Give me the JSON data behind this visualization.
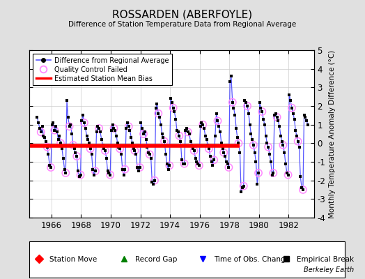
{
  "title": "ROSSARDEN (ABERFOYLE)",
  "subtitle": "Difference of Station Temperature Data from Regional Average",
  "ylabel": "Monthly Temperature Anomaly Difference (°C)",
  "xlim": [
    1964.5,
    1983.7
  ],
  "ylim": [
    -4,
    5
  ],
  "yticks": [
    -4,
    -3,
    -2,
    -1,
    0,
    1,
    2,
    3,
    4,
    5
  ],
  "xticks": [
    1966,
    1968,
    1970,
    1972,
    1974,
    1976,
    1978,
    1980,
    1982
  ],
  "bias_value": -0.15,
  "bias_start": 1964.5,
  "bias_end": 1978.7,
  "line_color": "#5555ff",
  "dot_color": "#000000",
  "qc_color": "#ff88ff",
  "bias_color": "#ff0000",
  "bg_color": "#e0e0e0",
  "plot_bg": "#ffffff",
  "grid_color": "#cccccc",
  "watermark": "Berkeley Earth",
  "legend1_items": [
    "Difference from Regional Average",
    "Quality Control Failed",
    "Estimated Station Mean Bias"
  ],
  "legend2_items": [
    "Station Move",
    "Record Gap",
    "Time of Obs. Change",
    "Empirical Break"
  ],
  "data_x": [
    1965.04,
    1965.12,
    1965.21,
    1965.29,
    1965.38,
    1965.46,
    1965.54,
    1965.62,
    1965.71,
    1965.79,
    1965.88,
    1965.96,
    1966.04,
    1966.12,
    1966.21,
    1966.29,
    1966.38,
    1966.46,
    1966.54,
    1966.62,
    1966.71,
    1966.79,
    1966.88,
    1966.96,
    1967.04,
    1967.12,
    1967.21,
    1967.29,
    1967.38,
    1967.46,
    1967.54,
    1967.62,
    1967.71,
    1967.79,
    1967.88,
    1967.96,
    1968.04,
    1968.12,
    1968.21,
    1968.29,
    1968.38,
    1968.46,
    1968.54,
    1968.62,
    1968.71,
    1968.79,
    1968.88,
    1968.96,
    1969.04,
    1969.12,
    1969.21,
    1969.29,
    1969.38,
    1969.46,
    1969.54,
    1969.62,
    1969.71,
    1969.79,
    1969.88,
    1969.96,
    1970.04,
    1970.12,
    1970.21,
    1970.29,
    1970.38,
    1970.46,
    1970.54,
    1970.62,
    1970.71,
    1970.79,
    1970.88,
    1970.96,
    1971.04,
    1971.12,
    1971.21,
    1971.29,
    1971.38,
    1971.46,
    1971.54,
    1971.62,
    1971.71,
    1971.79,
    1971.88,
    1971.96,
    1972.04,
    1972.12,
    1972.21,
    1972.29,
    1972.38,
    1972.46,
    1972.54,
    1972.62,
    1972.71,
    1972.79,
    1972.88,
    1972.96,
    1973.04,
    1973.12,
    1973.21,
    1973.29,
    1973.38,
    1973.46,
    1973.54,
    1973.62,
    1973.71,
    1973.79,
    1973.88,
    1973.96,
    1974.04,
    1974.12,
    1974.21,
    1974.29,
    1974.38,
    1974.46,
    1974.54,
    1974.62,
    1974.71,
    1974.79,
    1974.88,
    1974.96,
    1975.04,
    1975.12,
    1975.21,
    1975.29,
    1975.38,
    1975.46,
    1975.54,
    1975.62,
    1975.71,
    1975.79,
    1975.88,
    1975.96,
    1976.04,
    1976.12,
    1976.21,
    1976.29,
    1976.38,
    1976.46,
    1976.54,
    1976.62,
    1976.71,
    1976.79,
    1976.88,
    1976.96,
    1977.04,
    1977.12,
    1977.21,
    1977.29,
    1977.38,
    1977.46,
    1977.54,
    1977.62,
    1977.71,
    1977.79,
    1977.88,
    1977.96,
    1978.04,
    1978.12,
    1978.21,
    1978.29,
    1978.38,
    1978.46,
    1978.54,
    1978.62,
    1978.71,
    1978.79,
    1978.88,
    1978.96,
    1979.04,
    1979.12,
    1979.21,
    1979.29,
    1979.38,
    1979.46,
    1979.54,
    1979.62,
    1979.71,
    1979.79,
    1979.88,
    1979.96,
    1980.04,
    1980.12,
    1980.21,
    1980.29,
    1980.38,
    1980.46,
    1980.54,
    1980.62,
    1980.71,
    1980.79,
    1980.88,
    1980.96,
    1981.04,
    1981.12,
    1981.21,
    1981.29,
    1981.38,
    1981.46,
    1981.54,
    1981.62,
    1981.71,
    1981.79,
    1981.88,
    1981.96,
    1982.04,
    1982.12,
    1982.21,
    1982.29,
    1982.38,
    1982.46,
    1982.54,
    1982.62,
    1982.71,
    1982.79,
    1982.88,
    1982.96,
    1983.04,
    1983.12,
    1983.21,
    1983.29
  ],
  "data_y": [
    1.4,
    1.1,
    0.8,
    0.6,
    0.9,
    0.4,
    0.3,
    0.1,
    -0.2,
    -0.6,
    -1.2,
    -1.3,
    1.0,
    1.1,
    0.7,
    0.9,
    0.6,
    0.2,
    0.4,
    0.0,
    -0.3,
    -0.8,
    -1.4,
    -1.6,
    2.3,
    1.4,
    0.9,
    1.0,
    0.5,
    -0.1,
    -0.3,
    -0.5,
    -0.7,
    -1.5,
    -1.8,
    -1.7,
    1.2,
    1.5,
    1.1,
    0.8,
    0.4,
    0.2,
    0.0,
    -0.3,
    -0.6,
    -1.4,
    -1.7,
    -1.5,
    0.6,
    0.9,
    0.8,
    0.6,
    0.2,
    -0.1,
    -0.3,
    -0.4,
    -0.8,
    -1.5,
    -1.6,
    -1.7,
    0.7,
    1.0,
    0.8,
    0.7,
    0.4,
    0.0,
    -0.2,
    -0.3,
    -0.6,
    -1.4,
    -1.7,
    -1.4,
    0.8,
    1.1,
    0.9,
    0.7,
    0.3,
    0.0,
    -0.3,
    -0.4,
    -0.6,
    -1.3,
    -1.5,
    -1.3,
    1.1,
    0.8,
    0.5,
    0.6,
    0.2,
    -0.2,
    -0.5,
    -0.6,
    -0.8,
    -2.1,
    -2.2,
    -2.0,
    1.9,
    2.1,
    1.6,
    1.4,
    1.0,
    0.5,
    0.3,
    0.1,
    -0.6,
    -1.1,
    -1.4,
    -1.2,
    2.4,
    2.2,
    1.9,
    1.7,
    1.3,
    0.7,
    0.6,
    0.4,
    0.1,
    -0.9,
    -1.1,
    -1.1,
    0.7,
    0.8,
    0.6,
    0.5,
    0.1,
    -0.1,
    -0.3,
    -0.4,
    -0.8,
    -1.0,
    -1.1,
    -1.2,
    0.9,
    1.1,
    1.0,
    0.8,
    0.4,
    0.2,
    -0.1,
    -0.3,
    -0.7,
    -1.0,
    -1.2,
    -0.9,
    0.4,
    1.6,
    1.2,
    0.9,
    0.6,
    0.0,
    -0.3,
    -0.5,
    -0.7,
    -1.0,
    -1.1,
    -1.3,
    3.3,
    3.6,
    2.2,
    1.9,
    1.5,
    0.8,
    0.3,
    0.0,
    -0.5,
    -2.6,
    -2.4,
    -2.3,
    2.3,
    2.2,
    2.0,
    1.6,
    1.0,
    0.5,
    0.2,
    -0.1,
    -0.5,
    -1.0,
    -2.2,
    -1.6,
    2.2,
    1.9,
    1.7,
    1.3,
    1.0,
    0.4,
    0.0,
    -0.2,
    -0.6,
    -1.0,
    -1.7,
    -1.6,
    1.5,
    1.6,
    1.4,
    1.2,
    0.9,
    0.4,
    0.1,
    -0.1,
    -0.5,
    -1.1,
    -1.6,
    -1.7,
    2.6,
    2.3,
    1.9,
    1.6,
    1.3,
    0.7,
    0.4,
    0.1,
    -0.2,
    -1.8,
    -2.4,
    -2.5,
    1.5,
    1.4,
    1.2,
    1.0
  ],
  "qc_indices": [
    3,
    8,
    11,
    14,
    19,
    23,
    26,
    29,
    32,
    35,
    38,
    43,
    47,
    50,
    55,
    59,
    62,
    67,
    71,
    74,
    79,
    83,
    86,
    91,
    95,
    98,
    103,
    107,
    110,
    115,
    119,
    122,
    127,
    131,
    134,
    139,
    143,
    146,
    151,
    155,
    158,
    163,
    167,
    170,
    175,
    179,
    182,
    187,
    191,
    194,
    199,
    203,
    206,
    211,
    215
  ]
}
